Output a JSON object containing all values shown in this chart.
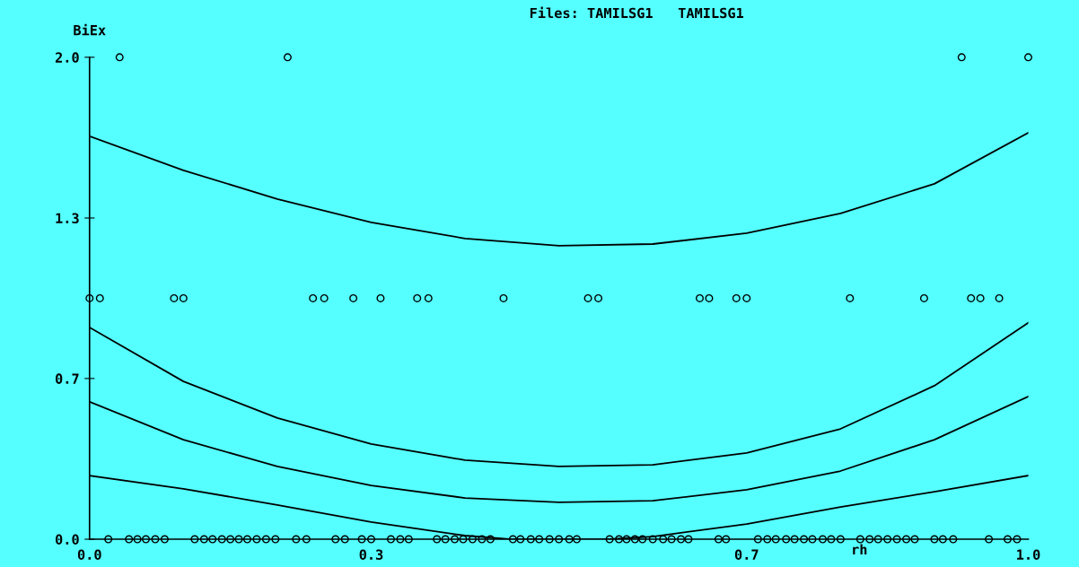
{
  "chart_data": {
    "type": "scatter",
    "title": "Files: TAMILSG1   TAMILSG1",
    "xlabel": "rh",
    "ylabel": "BiEx",
    "xlim": [
      0,
      1
    ],
    "ylim": [
      0,
      2
    ],
    "xticks": [
      {
        "value": 0,
        "label": "0.0"
      },
      {
        "value": 0.3,
        "label": "0.3"
      },
      {
        "value": 0.7,
        "label": "0.7"
      },
      {
        "value": 1,
        "label": "1.0"
      }
    ],
    "yticks": [
      {
        "value": 0,
        "label": "0.0"
      },
      {
        "value": 0.667,
        "label": "0.7"
      },
      {
        "value": 1.333,
        "label": "1.3"
      },
      {
        "value": 2,
        "label": "2.0"
      }
    ],
    "grid": false,
    "marker": "circle",
    "series": [
      {
        "color": "#000000",
        "x": [
          0.032,
          0.211,
          0.929,
          1.0
        ],
        "values": [
          2,
          2,
          2,
          2
        ]
      },
      {
        "color": "#000000",
        "x": [
          0,
          0.011,
          0.09,
          0.1,
          0.238,
          0.25,
          0.281,
          0.31,
          0.349,
          0.361,
          0.441,
          0.531,
          0.542,
          0.65,
          0.66,
          0.689,
          0.7,
          0.81,
          0.889,
          0.939,
          0.949,
          0.969
        ],
        "values": [
          1,
          1,
          1,
          1,
          1,
          1,
          1,
          1,
          1,
          1,
          1,
          1,
          1,
          1,
          1,
          1,
          1,
          1,
          1,
          1,
          1,
          1
        ]
      },
      {
        "color": "#000000",
        "x": [
          0.02,
          0.042,
          0.051,
          0.06,
          0.07,
          0.08,
          0.112,
          0.122,
          0.131,
          0.141,
          0.15,
          0.159,
          0.168,
          0.178,
          0.188,
          0.198,
          0.22,
          0.231,
          0.262,
          0.272,
          0.29,
          0.3,
          0.321,
          0.331,
          0.34,
          0.37,
          0.379,
          0.389,
          0.398,
          0.408,
          0.418,
          0.427,
          0.451,
          0.459,
          0.47,
          0.479,
          0.49,
          0.5,
          0.511,
          0.519,
          0.554,
          0.564,
          0.572,
          0.581,
          0.589,
          0.6,
          0.611,
          0.62,
          0.63,
          0.638,
          0.67,
          0.678,
          0.712,
          0.722,
          0.731,
          0.742,
          0.751,
          0.761,
          0.77,
          0.781,
          0.79,
          0.8,
          0.821,
          0.831,
          0.84,
          0.85,
          0.86,
          0.87,
          0.879,
          0.9,
          0.909,
          0.92,
          0.958,
          0.978,
          0.988
        ],
        "values": [
          0,
          0,
          0,
          0,
          0,
          0,
          0,
          0,
          0,
          0,
          0,
          0,
          0,
          0,
          0,
          0,
          0,
          0,
          0,
          0,
          0,
          0,
          0,
          0,
          0,
          0,
          0,
          0,
          0,
          0,
          0,
          0,
          0,
          0,
          0,
          0,
          0,
          0,
          0,
          0,
          0,
          0,
          0,
          0,
          0,
          0,
          0,
          0,
          0,
          0,
          0,
          0,
          0,
          0,
          0,
          0,
          0,
          0,
          0,
          0,
          0,
          0,
          0,
          0,
          0,
          0,
          0,
          0,
          0,
          0,
          0,
          0,
          0,
          0,
          0
        ]
      },
      {
        "type": "line",
        "color": "#000000",
        "marker": "none",
        "x": [
          0,
          0.1,
          0.2,
          0.3,
          0.4,
          0.5,
          0.6,
          0.7,
          0.8,
          0.9,
          1.0
        ],
        "values": [
          1.672,
          1.531,
          1.412,
          1.315,
          1.248,
          1.218,
          1.225,
          1.27,
          1.352,
          1.475,
          1.687
        ]
      },
      {
        "type": "line",
        "color": "#000000",
        "marker": "none",
        "x": [
          0,
          0.1,
          0.2,
          0.3,
          0.4,
          0.5,
          0.6,
          0.7,
          0.8,
          0.9,
          1.0
        ],
        "values": [
          0.879,
          0.655,
          0.503,
          0.395,
          0.328,
          0.302,
          0.309,
          0.358,
          0.458,
          0.637,
          0.898
        ]
      },
      {
        "type": "line",
        "color": "#000000",
        "marker": "none",
        "x": [
          0,
          0.1,
          0.2,
          0.3,
          0.4,
          0.5,
          0.6,
          0.7,
          0.8,
          0.9,
          1.0
        ],
        "values": [
          0.57,
          0.413,
          0.302,
          0.223,
          0.171,
          0.153,
          0.16,
          0.205,
          0.283,
          0.413,
          0.592
        ]
      },
      {
        "type": "line",
        "color": "#000000",
        "marker": "none",
        "x": [
          0,
          0.1,
          0.2,
          0.3,
          0.4,
          0.45,
          0.55,
          0.6,
          0.7,
          0.8,
          0.9,
          1.0
        ],
        "values": [
          0.264,
          0.209,
          0.142,
          0.071,
          0.015,
          0,
          0,
          0.011,
          0.063,
          0.134,
          0.197,
          0.264
        ]
      }
    ]
  }
}
